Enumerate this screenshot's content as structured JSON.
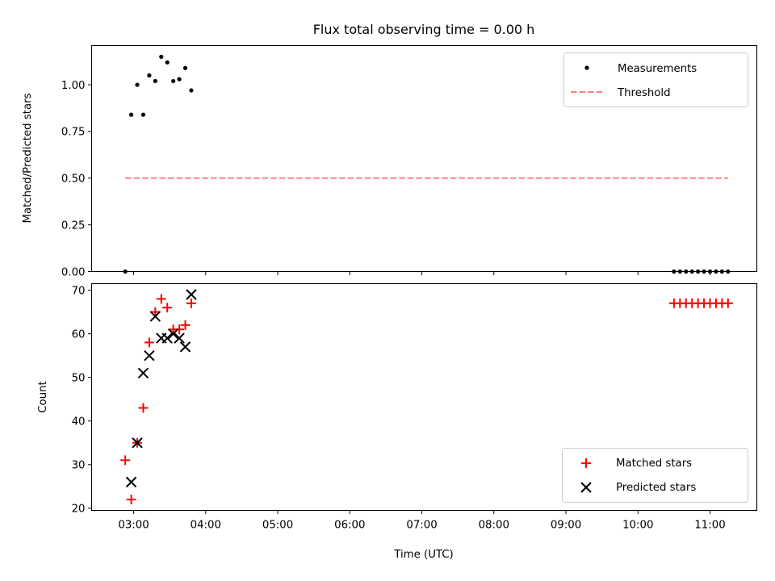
{
  "chart_data": [
    {
      "type": "scatter",
      "title": "Flux total observing time = 0.00 h",
      "xlabel": "",
      "ylabel": "Matched/Predicted stars",
      "ylim": [
        0,
        1.21
      ],
      "yticks": [
        "0.00",
        "0.25",
        "0.50",
        "0.75",
        "1.00"
      ],
      "ytick_values": [
        0,
        0.25,
        0.5,
        0.75,
        1.0
      ],
      "legend_position": "top-right",
      "series": [
        {
          "name": "Measurements",
          "color": "#000000",
          "marker": "dot",
          "x": [
            "02:53",
            "02:58",
            "03:03",
            "03:08",
            "03:13",
            "03:18",
            "03:23",
            "03:28",
            "03:33",
            "03:38",
            "03:43",
            "03:48",
            "03:53",
            "10:30",
            "10:35",
            "10:40",
            "10:45",
            "10:50",
            "10:55",
            "11:00",
            "11:05",
            "11:10",
            "11:15"
          ],
          "values": [
            0.0,
            0.84,
            1.0,
            0.84,
            1.05,
            1.02,
            1.15,
            1.12,
            1.02,
            1.03,
            1.09,
            0.97,
            null,
            0.0,
            0.0,
            0.0,
            0.0,
            0.0,
            0.0,
            0.0,
            0.0,
            0.0,
            0.0
          ]
        },
        {
          "name": "Threshold",
          "color": "#ff8080",
          "style": "dashed",
          "x": [
            "02:53",
            "11:15"
          ],
          "values": [
            0.5,
            0.5
          ]
        }
      ]
    },
    {
      "type": "scatter",
      "xlabel": "Time (UTC)",
      "ylabel": "Count",
      "ylim": [
        19.5,
        71.5
      ],
      "yticks": [
        "20",
        "30",
        "40",
        "50",
        "60",
        "70"
      ],
      "ytick_values": [
        20,
        30,
        40,
        50,
        60,
        70
      ],
      "xlim": [
        "02:25",
        "11:39"
      ],
      "xticks": [
        "03:00",
        "04:00",
        "05:00",
        "06:00",
        "07:00",
        "08:00",
        "09:00",
        "10:00",
        "11:00"
      ],
      "legend_position": "bottom-right",
      "series": [
        {
          "name": "Matched stars",
          "color": "#ff0000",
          "marker": "plus",
          "x": [
            "02:53",
            "02:58",
            "03:03",
            "03:08",
            "03:13",
            "03:18",
            "03:23",
            "03:28",
            "03:33",
            "03:38",
            "03:43",
            "03:48",
            "10:30",
            "10:35",
            "10:40",
            "10:45",
            "10:50",
            "10:55",
            "11:00",
            "11:05",
            "11:10",
            "11:15"
          ],
          "values": [
            31,
            22,
            35,
            43,
            58,
            65,
            68,
            66,
            61,
            61,
            62,
            67,
            67,
            67,
            67,
            67,
            67,
            67,
            67,
            67,
            67,
            67
          ]
        },
        {
          "name": "Predicted stars",
          "color": "#000000",
          "marker": "x",
          "x": [
            "02:58",
            "03:03",
            "03:08",
            "03:13",
            "03:18",
            "03:23",
            "03:28",
            "03:33",
            "03:38",
            "03:43",
            "03:48"
          ],
          "values": [
            26,
            35,
            51,
            55,
            64,
            59,
            59,
            60,
            59,
            57,
            69
          ]
        }
      ]
    }
  ]
}
